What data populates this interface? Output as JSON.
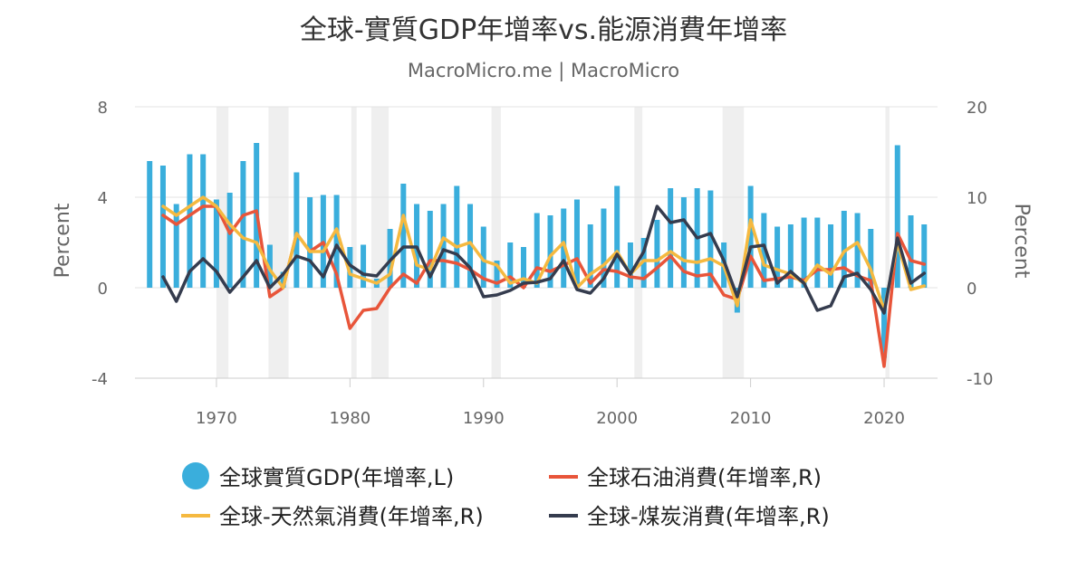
{
  "chart_data": {
    "type": "bar+line",
    "title": "全球-實質GDP年增率vs.能源消費年增率",
    "subtitle": "MacroMicro.me | MacroMicro",
    "ylabel_left": "Percent",
    "ylabel_right": "Percent",
    "ylim_left": [
      -4,
      8
    ],
    "ylim_right": [
      -10,
      20
    ],
    "yticks_left": [
      "8",
      "4",
      "0",
      "-4"
    ],
    "yticks_right": [
      "20",
      "10",
      "0",
      "-10"
    ],
    "xticks": [
      "1970",
      "1980",
      "1990",
      "2000",
      "2010",
      "2020"
    ],
    "xlim": [
      1963.9,
      2024
    ],
    "grid": "horizontal",
    "legend_position": "bottom",
    "recession_bands": [
      [
        1970,
        1970.9
      ],
      [
        1973.9,
        1975.4
      ],
      [
        1980.1,
        1980.5
      ],
      [
        1981.6,
        1982.9
      ],
      [
        1990.6,
        1991.3
      ],
      [
        2001.3,
        2001.9
      ],
      [
        2007.9,
        2009.5
      ],
      [
        2020.1,
        2020.4
      ]
    ],
    "series": [
      {
        "name": "全球實質GDP(年增率,L)",
        "kind": "bar",
        "axis": "left",
        "color": "#3aaedc",
        "x": [
          1965,
          1966,
          1967,
          1968,
          1969,
          1970,
          1971,
          1972,
          1973,
          1974,
          1975,
          1976,
          1977,
          1978,
          1979,
          1980,
          1981,
          1982,
          1983,
          1984,
          1985,
          1986,
          1987,
          1988,
          1989,
          1990,
          1991,
          1992,
          1993,
          1994,
          1995,
          1996,
          1997,
          1998,
          1999,
          2000,
          2001,
          2002,
          2003,
          2004,
          2005,
          2006,
          2007,
          2008,
          2009,
          2010,
          2011,
          2012,
          2013,
          2014,
          2015,
          2016,
          2017,
          2018,
          2019,
          2020,
          2021,
          2022,
          2023
        ],
        "values": [
          5.6,
          5.4,
          3.7,
          5.9,
          5.9,
          3.9,
          4.2,
          5.6,
          6.4,
          1.9,
          0.7,
          5.1,
          4.0,
          4.1,
          4.1,
          1.8,
          1.9,
          0.4,
          2.6,
          4.6,
          3.7,
          3.4,
          3.7,
          4.5,
          3.7,
          2.7,
          1.2,
          2.0,
          1.8,
          3.3,
          3.2,
          3.5,
          3.9,
          2.8,
          3.5,
          4.5,
          2.0,
          2.2,
          3.0,
          4.4,
          4.0,
          4.4,
          4.3,
          2.0,
          -1.1,
          4.5,
          3.3,
          2.7,
          2.8,
          3.1,
          3.1,
          2.8,
          3.4,
          3.3,
          2.6,
          -3.1,
          6.3,
          3.2,
          2.8
        ]
      },
      {
        "name": "全球石油消費(年增率,R)",
        "kind": "line",
        "axis": "right",
        "color": "#e8553a",
        "x": [
          1966,
          1967,
          1968,
          1969,
          1970,
          1971,
          1972,
          1973,
          1974,
          1975,
          1976,
          1977,
          1978,
          1979,
          1980,
          1981,
          1982,
          1983,
          1984,
          1985,
          1986,
          1987,
          1988,
          1989,
          1990,
          1991,
          1992,
          1993,
          1994,
          1995,
          1996,
          1997,
          1998,
          1999,
          2000,
          2001,
          2002,
          2003,
          2004,
          2005,
          2006,
          2007,
          2008,
          2009,
          2010,
          2011,
          2012,
          2013,
          2014,
          2015,
          2016,
          2017,
          2018,
          2019,
          2020,
          2021,
          2022,
          2023
        ],
        "values": [
          8,
          7,
          8,
          9,
          9,
          6,
          8,
          8.5,
          -1,
          0,
          6,
          4,
          5,
          1.5,
          -4.5,
          -2.5,
          -2.3,
          0,
          1.5,
          0.5,
          3,
          3,
          2.7,
          2,
          1,
          0.5,
          1.2,
          0,
          2.2,
          1.8,
          2.5,
          3.2,
          0.5,
          2,
          1.8,
          1.2,
          1,
          2.2,
          3.5,
          1.8,
          1.3,
          1.5,
          -0.8,
          -1.3,
          3.5,
          0.8,
          1,
          1.2,
          0.8,
          2,
          2,
          2.2,
          1.3,
          0.8,
          -8.7,
          6,
          3,
          2.6
        ]
      },
      {
        "name": "全球-天然氣消費(年增率,R)",
        "kind": "line",
        "axis": "right",
        "color": "#f5b940",
        "x": [
          1966,
          1967,
          1968,
          1969,
          1970,
          1971,
          1972,
          1973,
          1974,
          1975,
          1976,
          1977,
          1978,
          1979,
          1980,
          1981,
          1982,
          1983,
          1984,
          1985,
          1986,
          1987,
          1988,
          1989,
          1990,
          1991,
          1992,
          1993,
          1994,
          1995,
          1996,
          1997,
          1998,
          1999,
          2000,
          2001,
          2002,
          2003,
          2004,
          2005,
          2006,
          2007,
          2008,
          2009,
          2010,
          2011,
          2012,
          2013,
          2014,
          2015,
          2016,
          2017,
          2018,
          2019,
          2020,
          2021,
          2022,
          2023
        ],
        "values": [
          9,
          8,
          9,
          10,
          9,
          7,
          5.5,
          5,
          2,
          0,
          6,
          4,
          4,
          6.5,
          1.5,
          1,
          0.5,
          1.5,
          8,
          2.5,
          2,
          5.5,
          4.5,
          5,
          3,
          2.5,
          0.5,
          1,
          0.5,
          3.5,
          5,
          0,
          1.5,
          2.5,
          4,
          1.5,
          3,
          3,
          4,
          3,
          2.8,
          3.2,
          2.4,
          -2,
          7.5,
          2.5,
          2,
          1.5,
          0.5,
          2.5,
          1.5,
          4,
          5,
          2,
          -2.5,
          5,
          -0.2,
          0.2
        ]
      },
      {
        "name": "全球-煤炭消費(年增率,R)",
        "kind": "line",
        "axis": "right",
        "color": "#353c4e",
        "x": [
          1966,
          1967,
          1968,
          1969,
          1970,
          1971,
          1972,
          1973,
          1974,
          1975,
          1976,
          1977,
          1978,
          1979,
          1980,
          1981,
          1982,
          1983,
          1984,
          1985,
          1986,
          1987,
          1988,
          1989,
          1990,
          1991,
          1992,
          1993,
          1994,
          1995,
          1996,
          1997,
          1998,
          1999,
          2000,
          2001,
          2002,
          2003,
          2004,
          2005,
          2006,
          2007,
          2008,
          2009,
          2010,
          2011,
          2012,
          2013,
          2014,
          2015,
          2016,
          2017,
          2018,
          2019,
          2020,
          2021,
          2022,
          2023
        ],
        "values": [
          1.2,
          -1.5,
          1.8,
          3.2,
          1.8,
          -0.5,
          1.2,
          3,
          0,
          1.5,
          3.5,
          3,
          1.2,
          4.7,
          2.5,
          1.5,
          1.3,
          3,
          4.5,
          4.5,
          1.2,
          4.2,
          3.7,
          2.2,
          -1,
          -0.8,
          -0.3,
          0.5,
          0.6,
          1,
          3,
          -0.2,
          -0.6,
          1,
          3.7,
          1.5,
          4,
          9,
          7.2,
          7.5,
          5.5,
          6,
          3,
          -1,
          4.5,
          4.7,
          0.5,
          1.8,
          0.5,
          -2.5,
          -2,
          1.2,
          1.6,
          -0.2,
          -2.8,
          5.5,
          0.5,
          1.6
        ]
      }
    ]
  }
}
